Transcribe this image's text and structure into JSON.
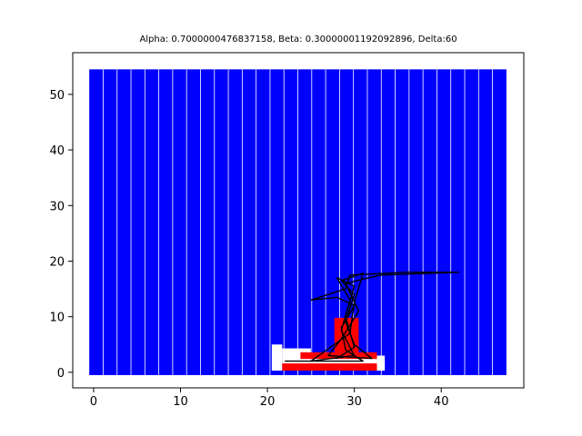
{
  "chart_data": {
    "type": "heatmap",
    "title": "Alpha: 0.7000000476837158, Beta: 0.30000001192092896, Delta:60",
    "xlabel": "",
    "ylabel": "",
    "xlim": [
      -2.4,
      49.5
    ],
    "ylim": [
      -2.8,
      57.5
    ],
    "xticks": [
      0,
      10,
      20,
      30,
      40
    ],
    "yticks": [
      0,
      10,
      20,
      30,
      40,
      50
    ],
    "grid": false,
    "colors": {
      "blue": "#0000ff",
      "red": "#ff0000",
      "white": "#ffffff",
      "path": "#000000"
    },
    "grid_columns": {
      "x_start": -0.5,
      "x_end": 47.5,
      "count": 30
    },
    "grid_rows": {
      "y_start": -0.5,
      "y_end": 54.5
    },
    "white_cells": [
      {
        "x0": 20.5,
        "x1": 21.7,
        "y0": 0.3,
        "y1": 5.0
      },
      {
        "x0": 21.7,
        "x1": 25.0,
        "y0": 0.3,
        "y1": 4.3
      },
      {
        "x0": 25.0,
        "x1": 28.0,
        "y0": 0.3,
        "y1": 3.5
      },
      {
        "x0": 28.0,
        "x1": 33.5,
        "y0": 0.3,
        "y1": 3.0
      },
      {
        "x0": 32.0,
        "x1": 33.5,
        "y0": 0.3,
        "y1": 2.0
      }
    ],
    "red_cells": [
      {
        "x0": 21.7,
        "x1": 32.6,
        "y0": 0.3,
        "y1": 1.6
      },
      {
        "x0": 23.8,
        "x1": 32.6,
        "y0": 2.4,
        "y1": 3.6
      },
      {
        "x0": 27.7,
        "x1": 30.5,
        "y0": 3.6,
        "y1": 9.8
      }
    ],
    "path_points": [
      [
        22.0,
        2.0
      ],
      [
        31.0,
        2.0
      ],
      [
        29.0,
        4.0
      ],
      [
        28.5,
        8.0
      ],
      [
        30.0,
        12.0
      ],
      [
        28.0,
        13.5
      ],
      [
        25.0,
        13.0
      ],
      [
        29.0,
        15.0
      ],
      [
        29.5,
        17.5
      ],
      [
        36.0,
        18.0
      ],
      [
        42.0,
        18.0
      ],
      [
        33.0,
        17.5
      ],
      [
        29.0,
        16.0
      ],
      [
        30.5,
        11.0
      ],
      [
        28.5,
        6.0
      ],
      [
        27.0,
        3.0
      ],
      [
        32.0,
        2.5
      ],
      [
        30.0,
        5.0
      ],
      [
        29.0,
        9.0
      ],
      [
        30.0,
        14.0
      ],
      [
        28.5,
        16.5
      ],
      [
        31.0,
        17.8
      ],
      [
        30.0,
        12.5
      ],
      [
        29.5,
        7.0
      ],
      [
        25.0,
        2.0
      ],
      [
        30.0,
        3.0
      ],
      [
        28.5,
        7.5
      ],
      [
        29.5,
        13.0
      ],
      [
        28.0,
        17.0
      ],
      [
        30.0,
        15.5
      ],
      [
        29.0,
        10.0
      ],
      [
        30.0,
        4.5
      ],
      [
        28.0,
        2.5
      ]
    ]
  }
}
